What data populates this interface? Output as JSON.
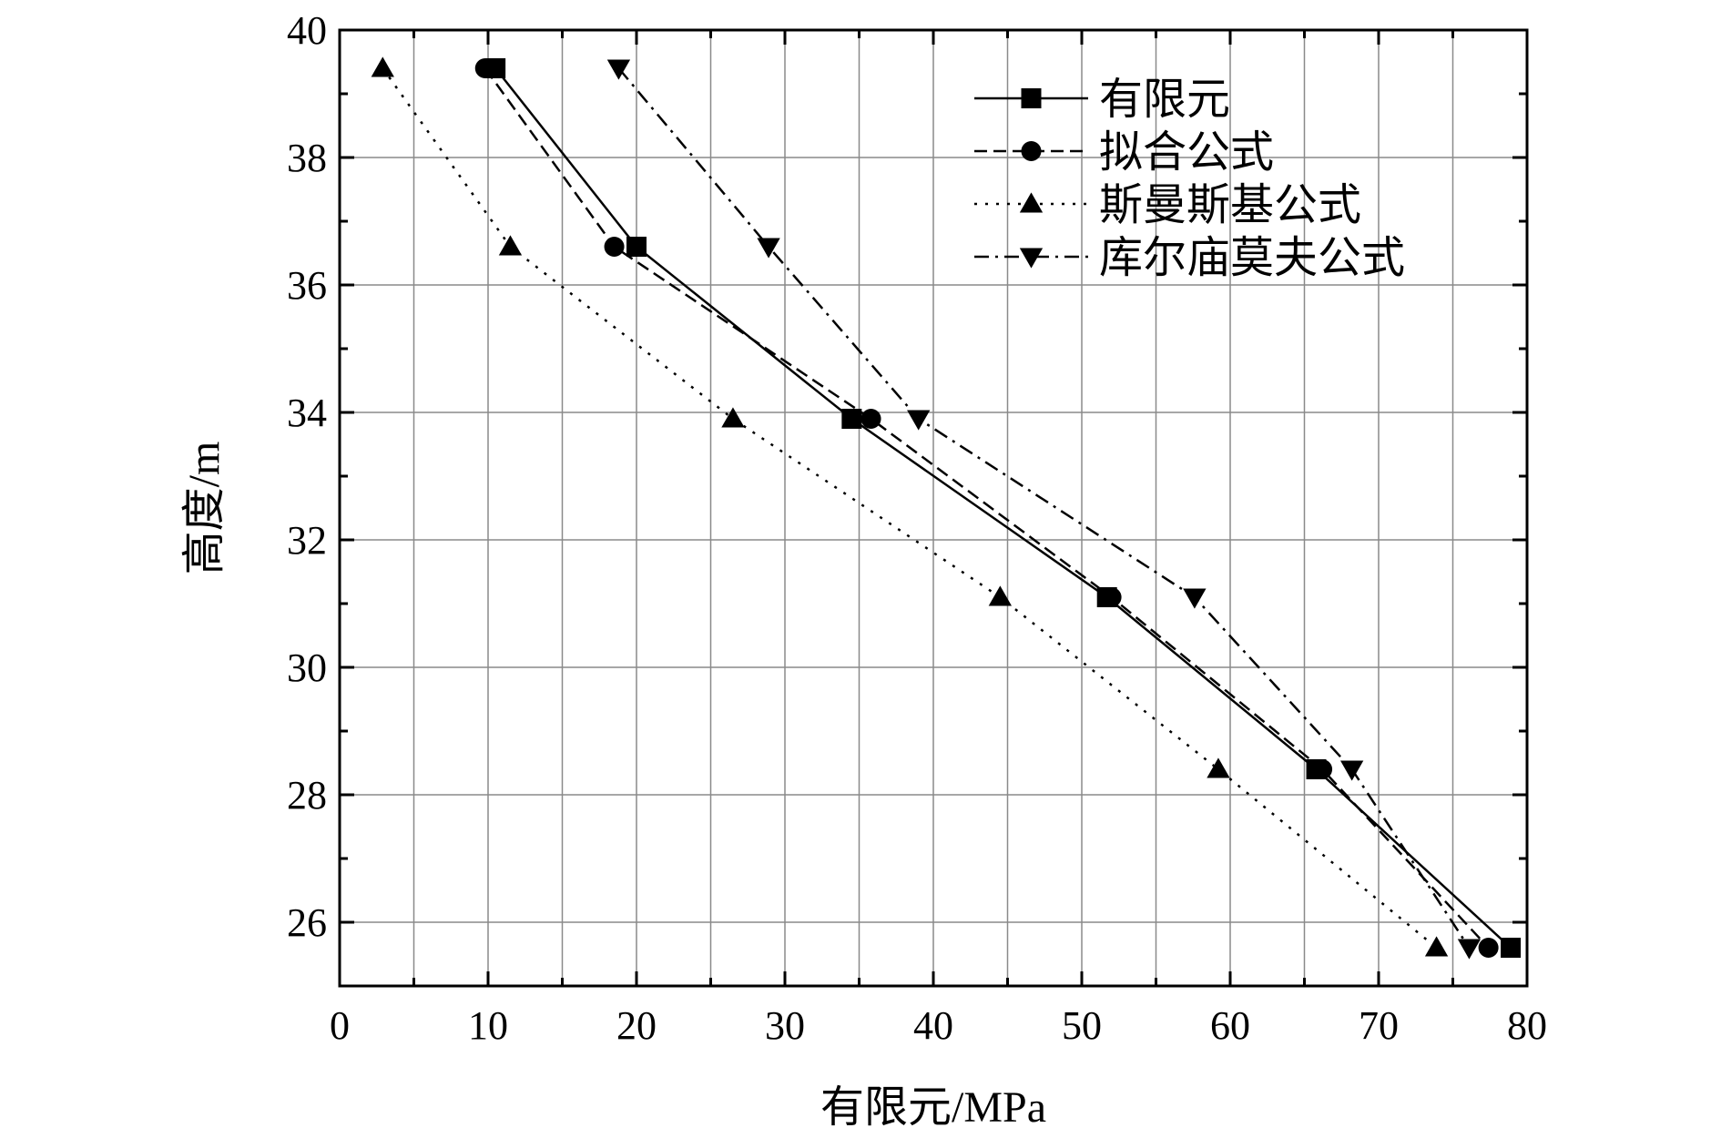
{
  "chart_data": {
    "type": "line",
    "title": "",
    "xlabel": "有限元/MPa",
    "ylabel": "高度/m",
    "xlim": [
      0,
      80
    ],
    "ylim": [
      25,
      40
    ],
    "xticks": [
      0,
      10,
      20,
      30,
      40,
      50,
      60,
      70,
      80
    ],
    "yticks": [
      26,
      28,
      30,
      32,
      34,
      36,
      38,
      40
    ],
    "grid": true,
    "legend_position": "top-right",
    "series": [
      {
        "name": "有限元",
        "marker": "square",
        "line_style": "solid",
        "color": "#000000",
        "points": [
          [
            10.5,
            39.4
          ],
          [
            20.0,
            36.6
          ],
          [
            34.5,
            33.9
          ],
          [
            51.7,
            31.1
          ],
          [
            65.8,
            28.4
          ],
          [
            78.9,
            25.6
          ]
        ]
      },
      {
        "name": "拟合公式",
        "marker": "circle",
        "line_style": "dashed",
        "color": "#000000",
        "points": [
          [
            9.8,
            39.4
          ],
          [
            18.5,
            36.6
          ],
          [
            35.8,
            33.9
          ],
          [
            52.0,
            31.1
          ],
          [
            66.2,
            28.4
          ],
          [
            77.4,
            25.6
          ]
        ]
      },
      {
        "name": "斯曼斯基公式",
        "marker": "triangle-up",
        "line_style": "dotted",
        "color": "#000000",
        "points": [
          [
            2.9,
            39.4
          ],
          [
            11.5,
            36.6
          ],
          [
            26.5,
            33.9
          ],
          [
            44.5,
            31.1
          ],
          [
            59.2,
            28.4
          ],
          [
            73.9,
            25.6
          ]
        ]
      },
      {
        "name": "库尔庙莫夫公式",
        "marker": "triangle-down",
        "line_style": "dashdot",
        "color": "#000000",
        "points": [
          [
            18.8,
            39.4
          ],
          [
            28.9,
            36.6
          ],
          [
            39.0,
            33.9
          ],
          [
            57.6,
            31.1
          ],
          [
            68.2,
            28.4
          ],
          [
            76.1,
            25.6
          ]
        ]
      }
    ]
  }
}
